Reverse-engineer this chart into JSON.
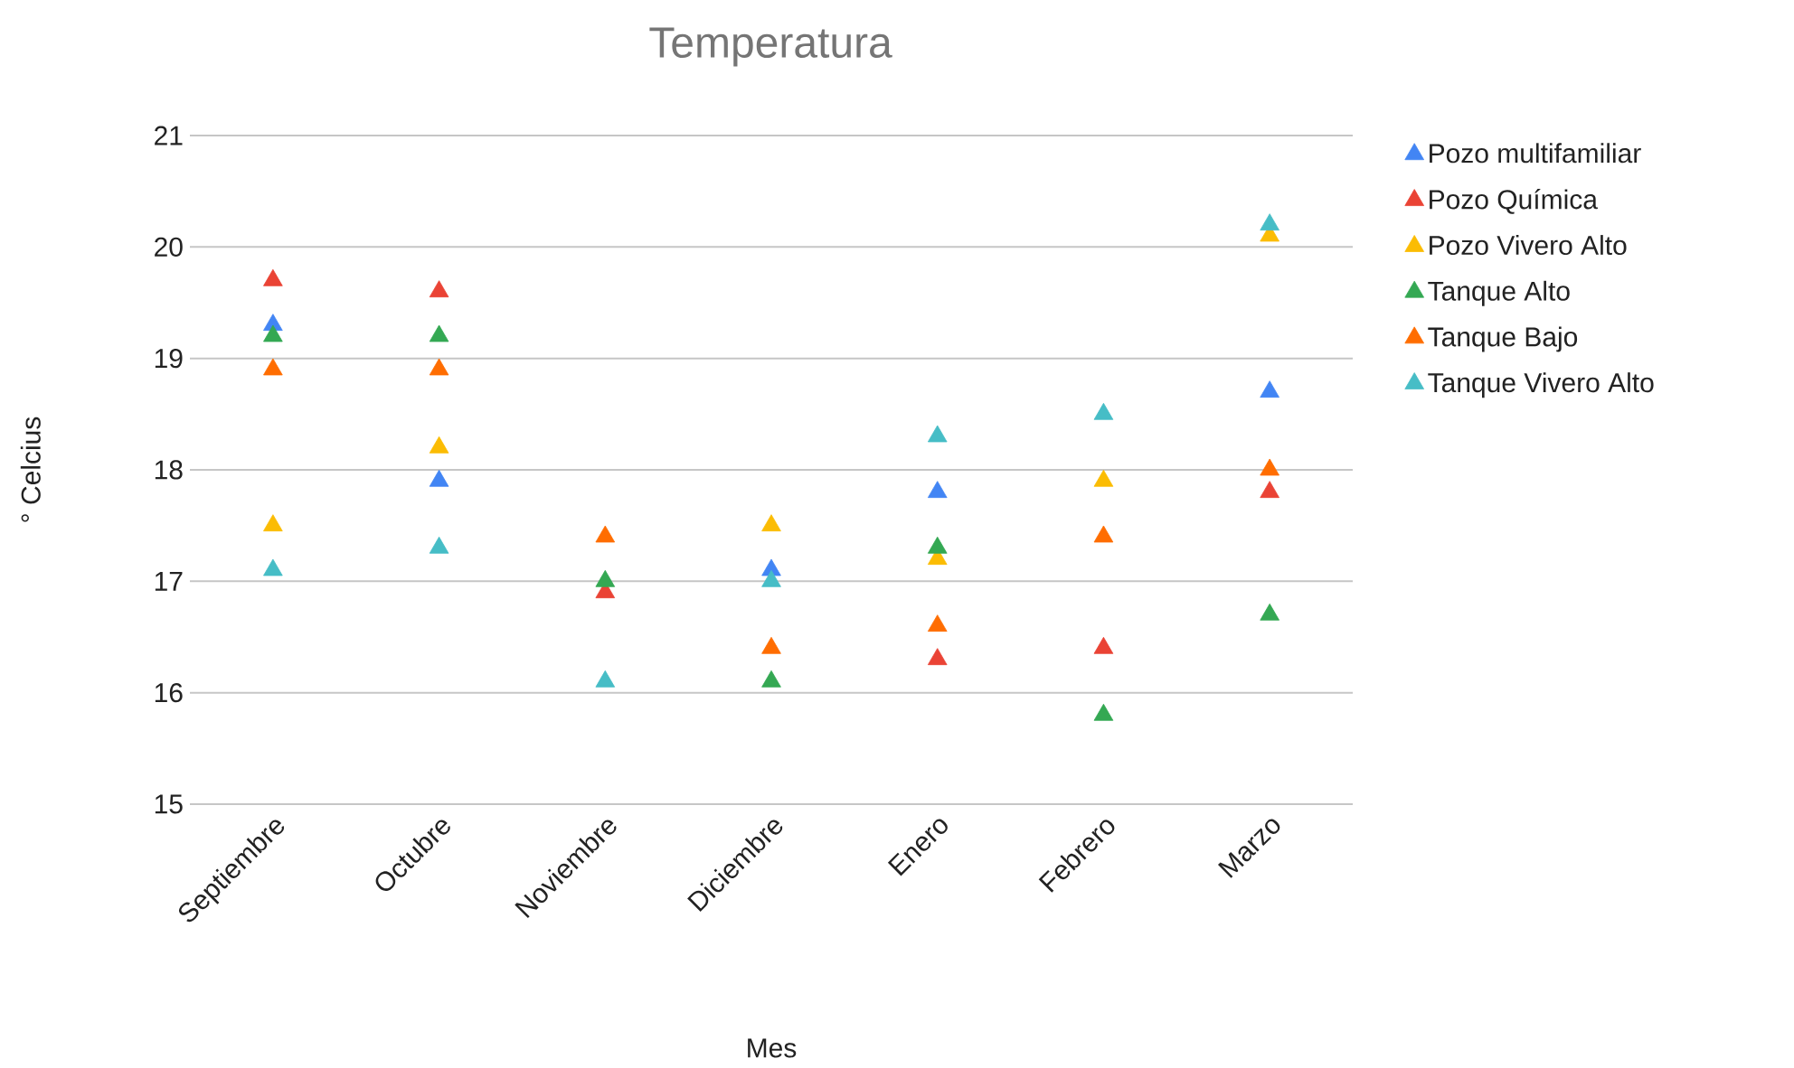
{
  "chart_data": {
    "type": "scatter",
    "title": "Temperatura",
    "xlabel": "Mes",
    "ylabel": "° Celcius",
    "categories": [
      "Septiembre",
      "Octubre",
      "Noviembre",
      "Diciembre",
      "Enero",
      "Febrero",
      "Marzo"
    ],
    "series": [
      {
        "name": "Pozo multifamiliar",
        "color": "#4285f4",
        "values": [
          19.3,
          17.9,
          null,
          17.1,
          17.8,
          null,
          18.7
        ]
      },
      {
        "name": "Pozo Química",
        "color": "#ea4335",
        "values": [
          19.7,
          19.6,
          16.9,
          null,
          16.3,
          16.4,
          17.8
        ]
      },
      {
        "name": "Pozo Vivero Alto",
        "color": "#fbbc04",
        "values": [
          17.5,
          18.2,
          null,
          17.5,
          17.2,
          17.9,
          20.1
        ]
      },
      {
        "name": "Tanque Alto",
        "color": "#34a853",
        "values": [
          19.2,
          19.2,
          17.0,
          16.1,
          17.3,
          15.8,
          16.7
        ]
      },
      {
        "name": "Tanque Bajo",
        "color": "#ff6d01",
        "values": [
          18.9,
          18.9,
          17.4,
          16.4,
          16.6,
          17.4,
          18.0
        ]
      },
      {
        "name": "Tanque Vivero Alto",
        "color": "#46bdc6",
        "values": [
          17.1,
          17.3,
          16.1,
          17.0,
          18.3,
          18.5,
          20.2
        ]
      }
    ],
    "ylim": [
      15,
      21
    ],
    "yticks": [
      15,
      16,
      17,
      18,
      19,
      20,
      21
    ],
    "grid": "y",
    "legend": "right",
    "marker": "triangle"
  }
}
